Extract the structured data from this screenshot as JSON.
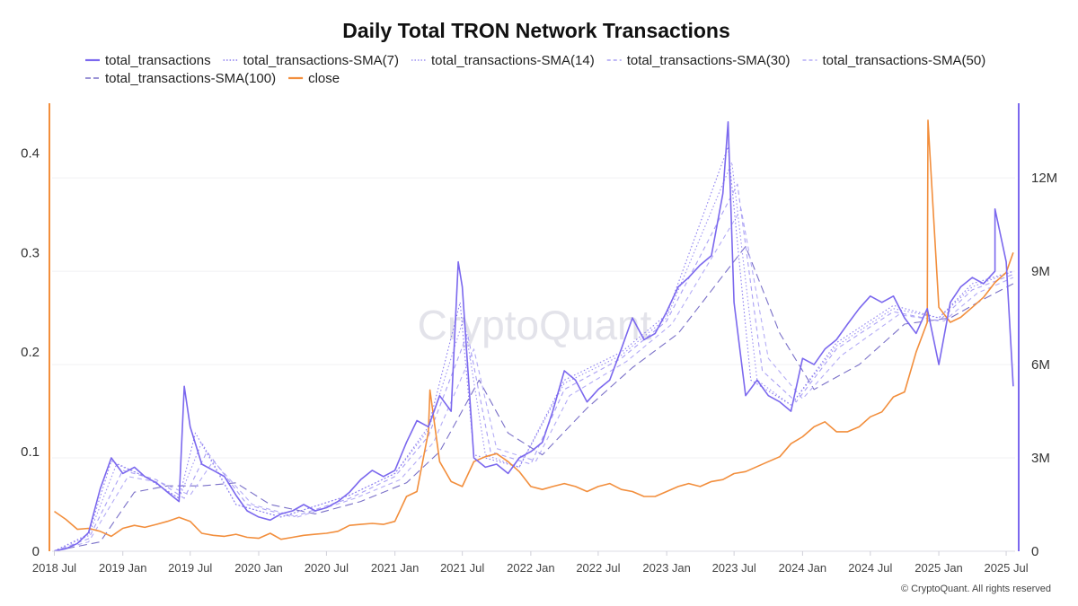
{
  "chart_data": {
    "type": "line",
    "title": "Daily Total TRON Network Transactions",
    "xlabel": "",
    "ylabel_left": "",
    "ylabel_right": "",
    "x_range": [
      "2018-06-25",
      "2025-07-25"
    ],
    "ylim_left": [
      0,
      0.45
    ],
    "ylim_right": [
      0,
      14400000
    ],
    "left_ticks": [
      {
        "value": 0,
        "label": "0"
      },
      {
        "value": 0.1,
        "label": "0.1"
      },
      {
        "value": 0.2,
        "label": "0.2"
      },
      {
        "value": 0.3,
        "label": "0.3"
      },
      {
        "value": 0.4,
        "label": "0.4"
      }
    ],
    "right_ticks": [
      {
        "value": 0,
        "label": "0"
      },
      {
        "value": 3000000,
        "label": "3M"
      },
      {
        "value": 6000000,
        "label": "6M"
      },
      {
        "value": 9000000,
        "label": "9M"
      },
      {
        "value": 12000000,
        "label": "12M"
      }
    ],
    "x_ticks": [
      {
        "date": "2018-07-01",
        "label": "2018 Jul"
      },
      {
        "date": "2019-01-01",
        "label": "2019 Jan"
      },
      {
        "date": "2019-07-01",
        "label": "2019 Jul"
      },
      {
        "date": "2020-01-01",
        "label": "2020 Jan"
      },
      {
        "date": "2020-07-01",
        "label": "2020 Jul"
      },
      {
        "date": "2021-01-01",
        "label": "2021 Jan"
      },
      {
        "date": "2021-07-01",
        "label": "2021 Jul"
      },
      {
        "date": "2022-01-01",
        "label": "2022 Jan"
      },
      {
        "date": "2022-07-01",
        "label": "2022 Jul"
      },
      {
        "date": "2023-01-01",
        "label": "2023 Jan"
      },
      {
        "date": "2023-07-01",
        "label": "2023 Jul"
      },
      {
        "date": "2024-01-01",
        "label": "2024 Jan"
      },
      {
        "date": "2024-07-01",
        "label": "2024 Jul"
      },
      {
        "date": "2025-01-01",
        "label": "2025 Jan"
      },
      {
        "date": "2025-07-01",
        "label": "2025 Jul"
      }
    ],
    "grid": true,
    "legend_position": "top",
    "series": [
      {
        "name": "total_transactions",
        "axis": "right",
        "color": "#7b68ee",
        "style": "solid",
        "x": [
          "2018-07-01",
          "2018-08-01",
          "2018-09-01",
          "2018-10-01",
          "2018-11-01",
          "2018-12-01",
          "2019-01-01",
          "2019-02-01",
          "2019-03-01",
          "2019-04-01",
          "2019-05-01",
          "2019-06-01",
          "2019-07-01",
          "2019-08-01",
          "2019-09-01",
          "2019-10-01",
          "2019-11-01",
          "2019-12-01",
          "2020-01-01",
          "2020-02-01",
          "2020-03-01",
          "2020-04-01",
          "2020-05-01",
          "2020-06-01",
          "2020-07-01",
          "2020-08-01",
          "2020-09-01",
          "2020-10-01",
          "2020-11-01",
          "2020-12-01",
          "2021-01-01",
          "2021-02-01",
          "2021-03-01",
          "2021-04-01",
          "2021-05-01",
          "2021-06-01",
          "2021-07-01",
          "2021-08-01",
          "2021-09-01",
          "2021-10-01",
          "2021-11-01",
          "2021-12-01",
          "2022-01-01",
          "2022-02-01",
          "2022-03-01",
          "2022-04-01",
          "2022-05-01",
          "2022-06-01",
          "2022-07-01",
          "2022-08-01",
          "2022-09-01",
          "2022-10-01",
          "2022-11-01",
          "2022-12-01",
          "2023-01-01",
          "2023-02-01",
          "2023-03-01",
          "2023-04-01",
          "2023-05-01",
          "2023-06-01",
          "2023-07-01",
          "2023-08-01",
          "2023-09-01",
          "2023-10-01",
          "2023-11-01",
          "2023-12-01",
          "2024-01-01",
          "2024-02-01",
          "2024-03-01",
          "2024-04-01",
          "2024-05-01",
          "2024-06-01",
          "2024-07-01",
          "2024-08-01",
          "2024-09-01",
          "2024-10-01",
          "2024-11-01",
          "2024-12-01",
          "2025-01-01",
          "2025-02-01",
          "2025-03-01",
          "2025-04-01",
          "2025-05-01",
          "2025-06-01",
          "2025-07-01",
          "2025-07-20"
        ],
        "values": [
          10000,
          80000,
          250000,
          600000,
          2000000,
          3000000,
          2500000,
          2700000,
          2400000,
          2200000,
          1900000,
          1600000,
          4000000,
          2800000,
          2600000,
          2400000,
          1800000,
          1300000,
          1100000,
          1000000,
          1200000,
          1300000,
          1500000,
          1300000,
          1400000,
          1600000,
          1900000,
          2300000,
          2600000,
          2400000,
          2600000,
          3500000,
          4200000,
          4000000,
          5000000,
          4500000,
          8500000,
          3000000,
          2700000,
          2800000,
          2500000,
          3000000,
          3200000,
          3500000,
          4500000,
          5800000,
          5500000,
          4800000,
          5200000,
          5500000,
          6500000,
          7500000,
          6800000,
          7000000,
          7700000,
          8500000,
          8800000,
          9200000,
          9500000,
          11500000,
          8000000,
          5000000,
          5500000,
          5000000,
          4800000,
          4500000,
          6200000,
          6000000,
          6500000,
          6800000,
          7300000,
          7800000,
          8200000,
          8000000,
          8200000,
          7500000,
          7000000,
          7800000,
          6000000,
          8000000,
          8500000,
          8800000,
          8600000,
          9000000,
          9300000,
          5300000
        ],
        "annotations": [
          {
            "date": "2019-06-15",
            "value": 5300000
          },
          {
            "date": "2021-06-20",
            "value": 9300000
          },
          {
            "date": "2023-06-15",
            "value": 13800000
          },
          {
            "date": "2025-06-01",
            "value": 11000000
          }
        ]
      },
      {
        "name": "total_transactions-SMA(7)",
        "axis": "right",
        "color": "#8a7cf0",
        "style": "dotted",
        "x": [
          "2018-07-01",
          "2018-10-01",
          "2018-12-01",
          "2019-03-01",
          "2019-06-01",
          "2019-07-15",
          "2019-11-01",
          "2020-03-01",
          "2020-09-01",
          "2021-01-01",
          "2021-04-01",
          "2021-06-25",
          "2021-08-01",
          "2021-12-01",
          "2022-04-01",
          "2022-09-01",
          "2023-01-01",
          "2023-06-15",
          "2023-08-15",
          "2023-12-01",
          "2024-04-01",
          "2024-09-01",
          "2025-01-01",
          "2025-04-01",
          "2025-07-20"
        ],
        "values": [
          10000,
          550000,
          2900000,
          2400000,
          1700000,
          3800000,
          1500000,
          1100000,
          1800000,
          2500000,
          4000000,
          8000000,
          3100000,
          2700000,
          5500000,
          6400000,
          7600000,
          13000000,
          5500000,
          4700000,
          6700000,
          7900000,
          7500000,
          8600000,
          9000000
        ]
      },
      {
        "name": "total_transactions-SMA(14)",
        "axis": "right",
        "color": "#9c90f2",
        "style": "dotted",
        "x": [
          "2018-07-01",
          "2018-10-01",
          "2018-12-15",
          "2019-03-01",
          "2019-06-01",
          "2019-08-01",
          "2019-11-01",
          "2020-03-01",
          "2020-09-01",
          "2021-01-01",
          "2021-04-01",
          "2021-07-05",
          "2021-09-01",
          "2021-12-01",
          "2022-04-01",
          "2022-09-01",
          "2023-01-01",
          "2023-06-25",
          "2023-09-01",
          "2023-12-01",
          "2024-04-01",
          "2024-09-01",
          "2025-01-01",
          "2025-04-01",
          "2025-07-20"
        ],
        "values": [
          10000,
          500000,
          2800000,
          2400000,
          1700000,
          3500000,
          1500000,
          1100000,
          1800000,
          2500000,
          3900000,
          7500000,
          3100000,
          2700000,
          5400000,
          6300000,
          7500000,
          12500000,
          5500000,
          4700000,
          6600000,
          7800000,
          7500000,
          8500000,
          9000000
        ]
      },
      {
        "name": "total_transactions-SMA(30)",
        "axis": "right",
        "color": "#aaa0f4",
        "style": "dashed",
        "x": [
          "2018-07-01",
          "2018-10-01",
          "2019-01-01",
          "2019-04-01",
          "2019-06-15",
          "2019-08-15",
          "2019-12-01",
          "2020-04-01",
          "2020-09-01",
          "2021-01-01",
          "2021-04-01",
          "2021-07-15",
          "2021-09-15",
          "2022-01-01",
          "2022-04-01",
          "2022-09-01",
          "2023-01-01",
          "2023-07-10",
          "2023-09-15",
          "2023-12-15",
          "2024-04-01",
          "2024-09-01",
          "2025-01-01",
          "2025-04-01",
          "2025-07-20"
        ],
        "values": [
          10000,
          400000,
          2600000,
          2300000,
          1700000,
          3200000,
          1500000,
          1100000,
          1700000,
          2400000,
          3700000,
          7000000,
          3200000,
          2800000,
          5200000,
          6200000,
          7400000,
          11800000,
          5800000,
          4800000,
          6500000,
          7700000,
          7400000,
          8400000,
          8900000
        ]
      },
      {
        "name": "total_transactions-SMA(50)",
        "axis": "right",
        "color": "#b4acf6",
        "style": "dashed",
        "x": [
          "2018-07-01",
          "2018-10-01",
          "2019-01-15",
          "2019-04-15",
          "2019-07-01",
          "2019-09-01",
          "2019-12-15",
          "2020-04-15",
          "2020-09-15",
          "2021-01-15",
          "2021-04-15",
          "2021-08-01",
          "2021-10-01",
          "2022-01-15",
          "2022-04-15",
          "2022-09-15",
          "2023-01-15",
          "2023-07-20",
          "2023-10-01",
          "2024-01-01",
          "2024-04-15",
          "2024-09-15",
          "2025-01-15",
          "2025-04-15",
          "2025-07-20"
        ],
        "values": [
          10000,
          300000,
          2400000,
          2200000,
          1800000,
          2900000,
          1500000,
          1100000,
          1700000,
          2300000,
          3500000,
          6500000,
          3300000,
          2900000,
          5000000,
          6100000,
          7300000,
          11000000,
          6200000,
          4900000,
          6300000,
          7600000,
          7400000,
          8300000,
          8800000
        ]
      },
      {
        "name": "total_transactions-SMA(100)",
        "axis": "right",
        "color": "#7a70c8",
        "style": "longdash",
        "x": [
          "2018-07-01",
          "2018-11-01",
          "2019-02-01",
          "2019-05-01",
          "2019-08-01",
          "2019-11-01",
          "2020-02-01",
          "2020-06-01",
          "2020-10-01",
          "2021-02-01",
          "2021-05-01",
          "2021-08-15",
          "2021-11-01",
          "2022-02-01",
          "2022-06-01",
          "2022-10-01",
          "2023-02-01",
          "2023-08-01",
          "2023-11-01",
          "2024-02-01",
          "2024-06-01",
          "2024-10-01",
          "2025-02-01",
          "2025-05-01",
          "2025-07-20"
        ],
        "values": [
          10000,
          300000,
          1900000,
          2100000,
          2100000,
          2200000,
          1500000,
          1200000,
          1600000,
          2200000,
          3200000,
          5500000,
          3800000,
          3100000,
          4600000,
          5900000,
          7000000,
          9800000,
          7000000,
          5200000,
          6000000,
          7300000,
          7500000,
          8100000,
          8600000
        ]
      },
      {
        "name": "close",
        "axis": "left",
        "color": "#f28e3c",
        "style": "solid",
        "x": [
          "2018-07-01",
          "2018-08-01",
          "2018-09-01",
          "2018-10-01",
          "2018-11-01",
          "2018-12-01",
          "2019-01-01",
          "2019-02-01",
          "2019-03-01",
          "2019-04-01",
          "2019-05-01",
          "2019-06-01",
          "2019-07-01",
          "2019-08-01",
          "2019-09-01",
          "2019-10-01",
          "2019-11-01",
          "2019-12-01",
          "2020-01-01",
          "2020-02-01",
          "2020-03-01",
          "2020-04-01",
          "2020-05-01",
          "2020-06-01",
          "2020-07-01",
          "2020-08-01",
          "2020-09-01",
          "2020-10-01",
          "2020-11-01",
          "2020-12-01",
          "2021-01-01",
          "2021-02-01",
          "2021-03-01",
          "2021-04-01",
          "2021-05-01",
          "2021-06-01",
          "2021-07-01",
          "2021-08-01",
          "2021-09-01",
          "2021-10-01",
          "2021-11-01",
          "2021-12-01",
          "2022-01-01",
          "2022-02-01",
          "2022-03-01",
          "2022-04-01",
          "2022-05-01",
          "2022-06-01",
          "2022-07-01",
          "2022-08-01",
          "2022-09-01",
          "2022-10-01",
          "2022-11-01",
          "2022-12-01",
          "2023-01-01",
          "2023-02-01",
          "2023-03-01",
          "2023-04-01",
          "2023-05-01",
          "2023-06-01",
          "2023-07-01",
          "2023-08-01",
          "2023-09-01",
          "2023-10-01",
          "2023-11-01",
          "2023-12-01",
          "2024-01-01",
          "2024-02-01",
          "2024-03-01",
          "2024-04-01",
          "2024-05-01",
          "2024-06-01",
          "2024-07-01",
          "2024-08-01",
          "2024-09-01",
          "2024-10-01",
          "2024-11-01",
          "2024-12-01",
          "2025-01-01",
          "2025-02-01",
          "2025-03-01",
          "2025-04-01",
          "2025-05-01",
          "2025-06-01",
          "2025-07-01",
          "2025-07-20"
        ],
        "values": [
          0.04,
          0.032,
          0.022,
          0.023,
          0.02,
          0.015,
          0.023,
          0.026,
          0.024,
          0.027,
          0.03,
          0.034,
          0.03,
          0.018,
          0.016,
          0.015,
          0.017,
          0.014,
          0.013,
          0.018,
          0.012,
          0.014,
          0.016,
          0.017,
          0.018,
          0.02,
          0.026,
          0.027,
          0.028,
          0.027,
          0.03,
          0.055,
          0.06,
          0.12,
          0.09,
          0.07,
          0.065,
          0.09,
          0.095,
          0.098,
          0.09,
          0.08,
          0.065,
          0.062,
          0.065,
          0.068,
          0.065,
          0.06,
          0.065,
          0.068,
          0.062,
          0.06,
          0.055,
          0.055,
          0.06,
          0.065,
          0.068,
          0.065,
          0.07,
          0.072,
          0.078,
          0.08,
          0.085,
          0.09,
          0.095,
          0.108,
          0.115,
          0.125,
          0.13,
          0.12,
          0.12,
          0.125,
          0.135,
          0.14,
          0.155,
          0.16,
          0.2,
          0.23,
          0.245,
          0.23,
          0.235,
          0.245,
          0.255,
          0.27,
          0.28,
          0.3
        ],
        "annotations": [
          {
            "date": "2021-04-05",
            "value": 0.162
          },
          {
            "date": "2024-12-03",
            "value": 0.433
          }
        ]
      }
    ]
  },
  "watermark": "CryptoQuant",
  "footer": "© CryptoQuant. All rights reserved"
}
